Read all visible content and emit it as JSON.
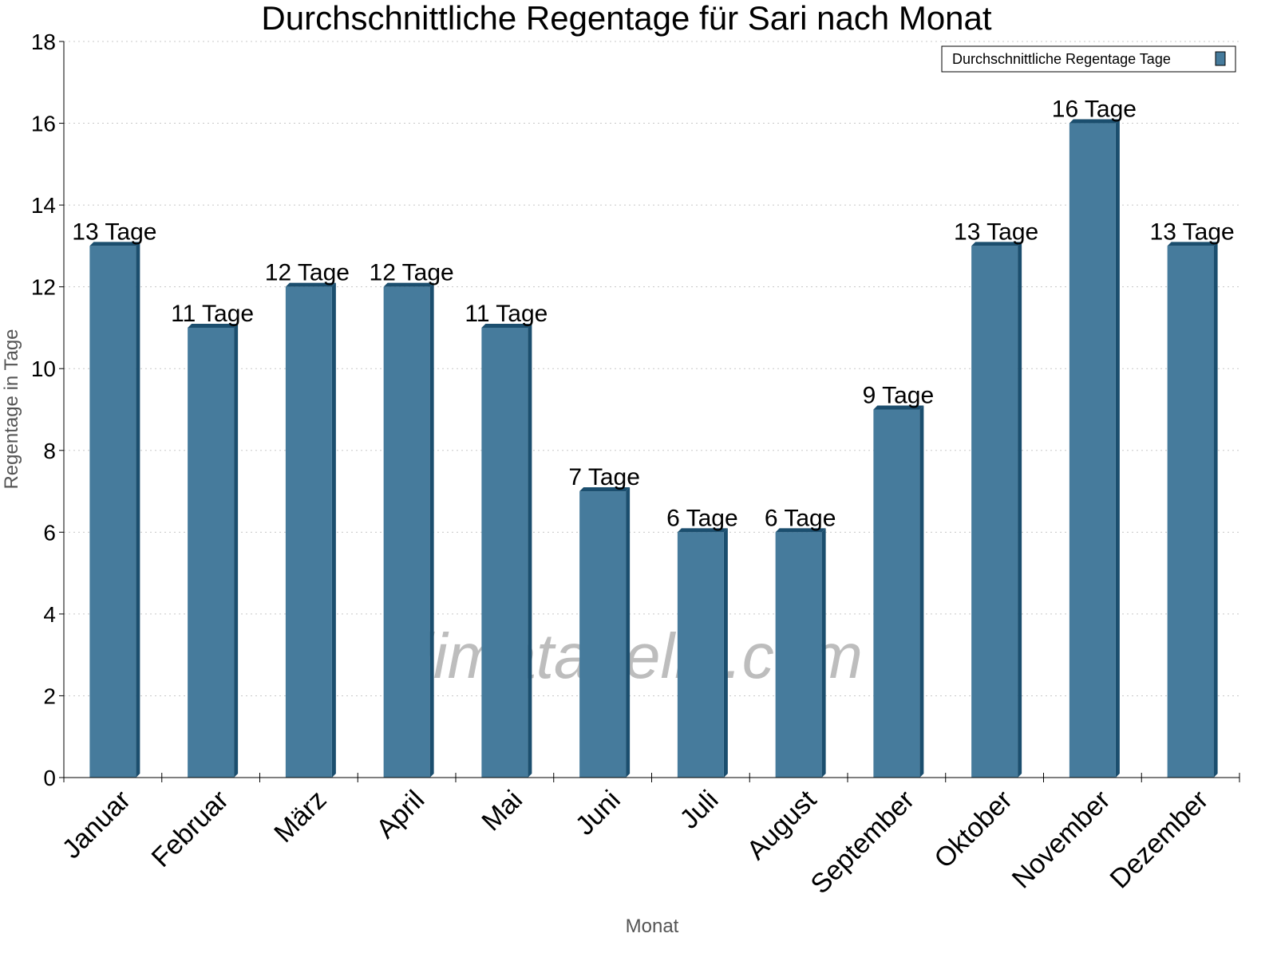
{
  "chart_data": {
    "type": "bar",
    "title": "Durchschnittliche Regentage für Sari nach Monat",
    "xlabel": "Monat",
    "ylabel": "Regentage in Tage",
    "ylim": [
      0,
      18
    ],
    "yticks": [
      0,
      2,
      4,
      6,
      8,
      10,
      12,
      14,
      16,
      18
    ],
    "grid": true,
    "legend_position": "top-right",
    "categories": [
      "Januar",
      "Februar",
      "März",
      "April",
      "Mai",
      "Juni",
      "Juli",
      "August",
      "September",
      "Oktober",
      "November",
      "Dezember"
    ],
    "series": [
      {
        "name": "Durchschnittliche Regentage Tage",
        "values": [
          13,
          11,
          12,
          12,
          11,
          7,
          6,
          6,
          9,
          13,
          16,
          13
        ],
        "data_labels": [
          "13 Tage",
          "11 Tage",
          "12 Tage",
          "12 Tage",
          "11 Tage",
          "7 Tage",
          "6 Tage",
          "6 Tage",
          "9 Tage",
          "13 Tage",
          "16 Tage",
          "13 Tage"
        ],
        "color": "#467b9c",
        "side_color": "#1b4e6e"
      }
    ],
    "watermark": "klimatabelle.com"
  }
}
